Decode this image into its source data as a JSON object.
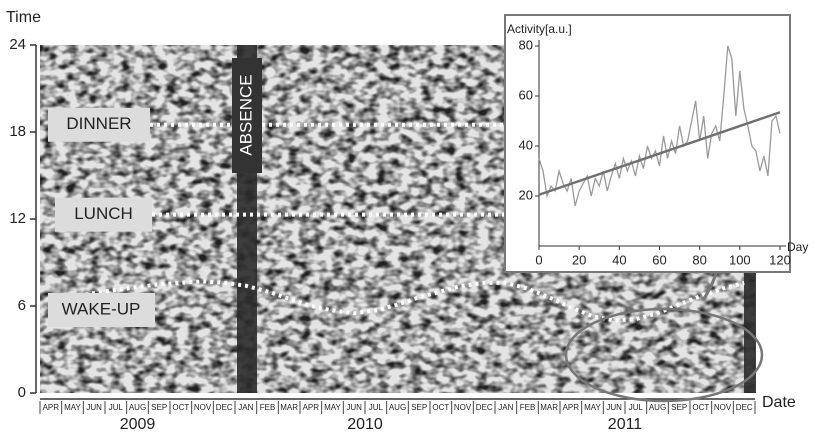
{
  "chart_data": [
    {
      "type": "actogram",
      "y_label": "Time",
      "x_label": "Date",
      "categories": [
        "APR",
        "MAY",
        "JUN",
        "JUL",
        "AUG",
        "SEP",
        "OCT",
        "NOV",
        "DEC",
        "JAN",
        "FEB",
        "MAR",
        "APR",
        "MAY",
        "JUN",
        "JUL",
        "AUG",
        "SEP",
        "OCT",
        "NOV",
        "DEC",
        "JAN",
        "FEB",
        "MAR",
        "APR",
        "MAY",
        "JUN",
        "JUL",
        "AUG",
        "SEP",
        "OCT",
        "NOV",
        "DEC"
      ],
      "years": [
        "2009",
        "2010",
        "2011"
      ],
      "ylim": [
        0,
        24
      ],
      "yticks": [
        0,
        6,
        12,
        18,
        24
      ],
      "dinner": {
        "label": "DINNER",
        "value": 18.5
      },
      "lunch": {
        "label": "LUNCH",
        "value": 12.3
      },
      "wake_up": {
        "label": "WAKE-UP",
        "values": [
          6.3,
          6.6,
          6.9,
          7.1,
          7.3,
          7.5,
          7.6,
          7.7,
          7.6,
          7.4,
          7.0,
          6.5,
          6.0,
          5.7,
          5.5,
          5.7,
          6.1,
          6.6,
          7.0,
          7.4,
          7.6,
          7.6,
          7.2,
          6.6,
          5.9,
          5.3,
          5.0,
          5.1,
          5.5,
          6.1,
          6.7,
          7.2,
          7.6
        ]
      },
      "absence": {
        "label": "ABSENCE"
      }
    },
    {
      "type": "line",
      "y_label": "Activity[a.u.]",
      "x_label": "Day",
      "x": [
        0,
        2,
        4,
        6,
        8,
        10,
        12,
        14,
        16,
        18,
        20,
        22,
        24,
        26,
        28,
        30,
        32,
        34,
        36,
        38,
        40,
        42,
        44,
        46,
        48,
        50,
        52,
        54,
        56,
        58,
        60,
        62,
        64,
        66,
        68,
        70,
        72,
        74,
        76,
        78,
        80,
        82,
        84,
        86,
        88,
        90,
        92,
        94,
        96,
        98,
        100,
        102,
        104,
        106,
        108,
        110,
        112,
        114,
        116,
        118,
        120
      ],
      "series": [
        {
          "color": "#9a9a9a",
          "values": [
            35,
            30,
            20,
            24,
            22,
            30,
            25,
            22,
            27,
            16,
            22,
            25,
            28,
            20,
            27,
            24,
            30,
            22,
            28,
            33,
            27,
            35,
            30,
            34,
            28,
            36,
            31,
            40,
            35,
            38,
            32,
            44,
            35,
            42,
            37,
            48,
            40,
            42,
            50,
            58,
            42,
            52,
            35,
            45,
            48,
            42,
            60,
            80,
            75,
            52,
            70,
            55,
            48,
            40,
            38,
            30,
            36,
            28,
            50,
            52,
            45
          ]
        }
      ],
      "trend": {
        "color": "#707070",
        "x": [
          0,
          120
        ],
        "values": [
          20.5,
          53.5
        ]
      },
      "xlim": [
        0,
        120
      ],
      "ylim": [
        0,
        80
      ],
      "xticks": [
        0,
        20,
        40,
        60,
        80,
        100,
        120
      ],
      "yticks": [
        20,
        40,
        60,
        80
      ]
    }
  ]
}
